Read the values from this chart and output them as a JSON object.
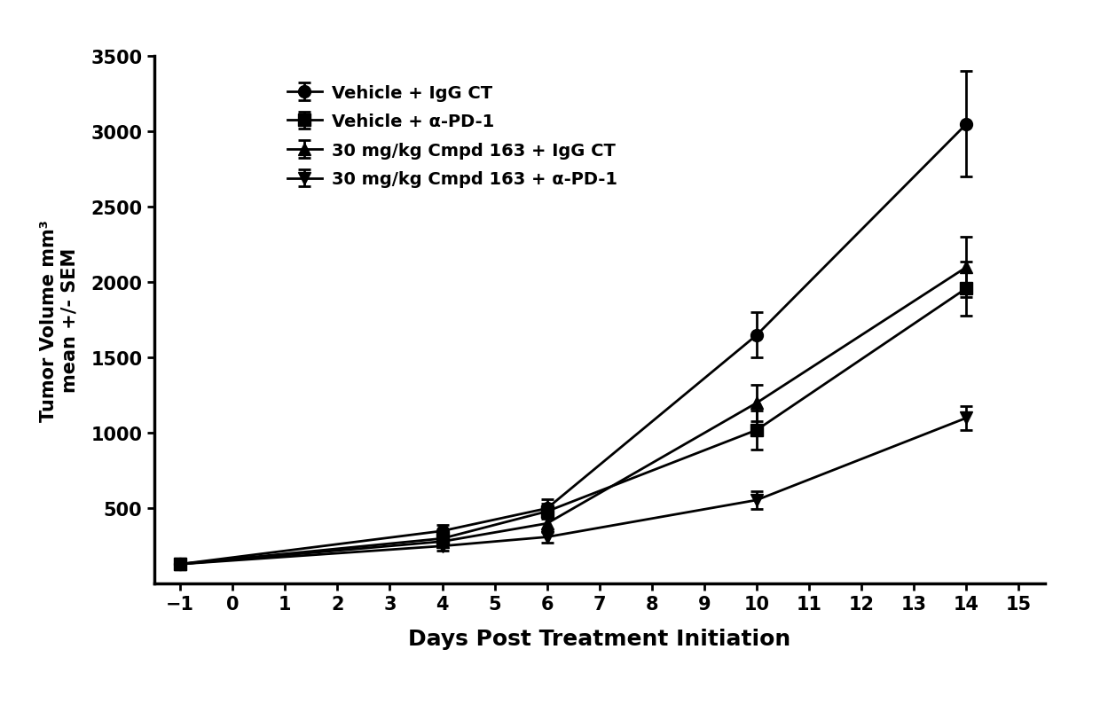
{
  "series": [
    {
      "label": "Vehicle + IgG CT",
      "marker": "o",
      "markersize": 10,
      "x": [
        -1,
        4,
        6,
        10,
        14
      ],
      "y": [
        130,
        350,
        500,
        1650,
        3050
      ],
      "yerr": [
        20,
        40,
        60,
        150,
        350
      ],
      "color": "#000000",
      "linewidth": 2
    },
    {
      "label": "Vehicle + α-PD-1",
      "marker": "s",
      "markersize": 10,
      "x": [
        -1,
        4,
        6,
        10,
        14
      ],
      "y": [
        130,
        300,
        480,
        1020,
        1960
      ],
      "yerr": [
        20,
        40,
        50,
        130,
        180
      ],
      "color": "#000000",
      "linewidth": 2
    },
    {
      "label": "30 mg/kg Cmpd 163 + IgG CT",
      "marker": "^",
      "markersize": 10,
      "x": [
        -1,
        4,
        6,
        10,
        14
      ],
      "y": [
        130,
        280,
        400,
        1200,
        2100
      ],
      "yerr": [
        20,
        35,
        45,
        120,
        200
      ],
      "color": "#000000",
      "linewidth": 2
    },
    {
      "label": "30 mg/kg Cmpd 163 + α-PD-1",
      "marker": "v",
      "markersize": 10,
      "x": [
        -1,
        4,
        6,
        10,
        14
      ],
      "y": [
        130,
        250,
        310,
        555,
        1100
      ],
      "yerr": [
        20,
        30,
        35,
        60,
        80
      ],
      "color": "#000000",
      "linewidth": 2
    }
  ],
  "xlabel": "Days Post Treatment Initiation",
  "ylabel": "Tumor Volume mm³\nmean +/- SEM",
  "xlim": [
    -1.5,
    15.5
  ],
  "ylim": [
    0,
    3500
  ],
  "xticks": [
    -1,
    0,
    1,
    2,
    3,
    4,
    5,
    6,
    7,
    8,
    9,
    10,
    11,
    12,
    13,
    14,
    15
  ],
  "yticks": [
    500,
    1000,
    1500,
    2000,
    2500,
    3000,
    3500
  ],
  "background_color": "#ffffff",
  "xlabel_fontsize": 18,
  "ylabel_fontsize": 15,
  "tick_fontsize": 15,
  "legend_fontsize": 14,
  "spine_linewidth": 2.5
}
